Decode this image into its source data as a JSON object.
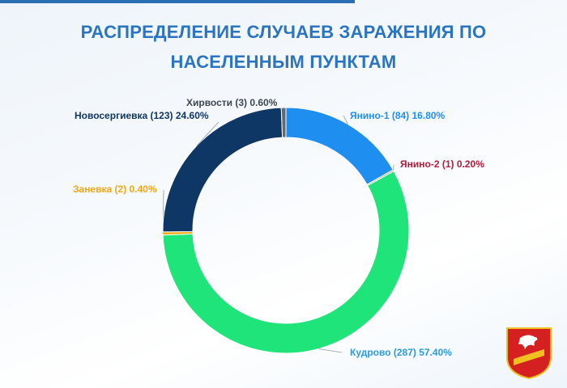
{
  "title": {
    "line1": "РАСПРЕДЕЛЕНИЕ СЛУЧАЕВ ЗАРАЖЕНИЯ ПО",
    "line2": "НАСЕЛЕННЫМ ПУНКТАМ"
  },
  "chart_data": {
    "type": "pie",
    "donut": true,
    "title": "РАСПРЕДЕЛЕНИЕ СЛУЧАЕВ ЗАРАЖЕНИЯ ПО НАСЕЛЕННЫМ ПУНКТАМ",
    "legend": "none",
    "slices": [
      {
        "name": "Янино-1",
        "value": 84,
        "percent": "16.80%",
        "label": "Янино-1 (84) 16.80%",
        "color": "#1f8ef1",
        "label_color": "#1f8ef1"
      },
      {
        "name": "Янино-2",
        "value": 1,
        "percent": "0.20%",
        "label": "Янино-2 (1) 0.20%",
        "color": "#9e9e9e",
        "label_color": "#b01c3c"
      },
      {
        "name": "Кудрово",
        "value": 287,
        "percent": "57.40%",
        "label": "Кудрово (287) 57.40%",
        "color": "#1ee47a",
        "label_color": "#2c9cd8"
      },
      {
        "name": "Заневка",
        "value": 2,
        "percent": "0.40%",
        "label": "Заневка (2) 0.40%",
        "color": "#f3a712",
        "label_color": "#f3a712"
      },
      {
        "name": "Новосергиевка",
        "value": 123,
        "percent": "24.60%",
        "label": "Новосергиевка (123) 24.60%",
        "color": "#0f3766",
        "label_color": "#0f3766"
      },
      {
        "name": "Хирвости",
        "value": 3,
        "percent": "0.60%",
        "label": "Хирвости (3) 0.60%",
        "color": "#606a74",
        "label_color": "#3c4650"
      }
    ]
  }
}
